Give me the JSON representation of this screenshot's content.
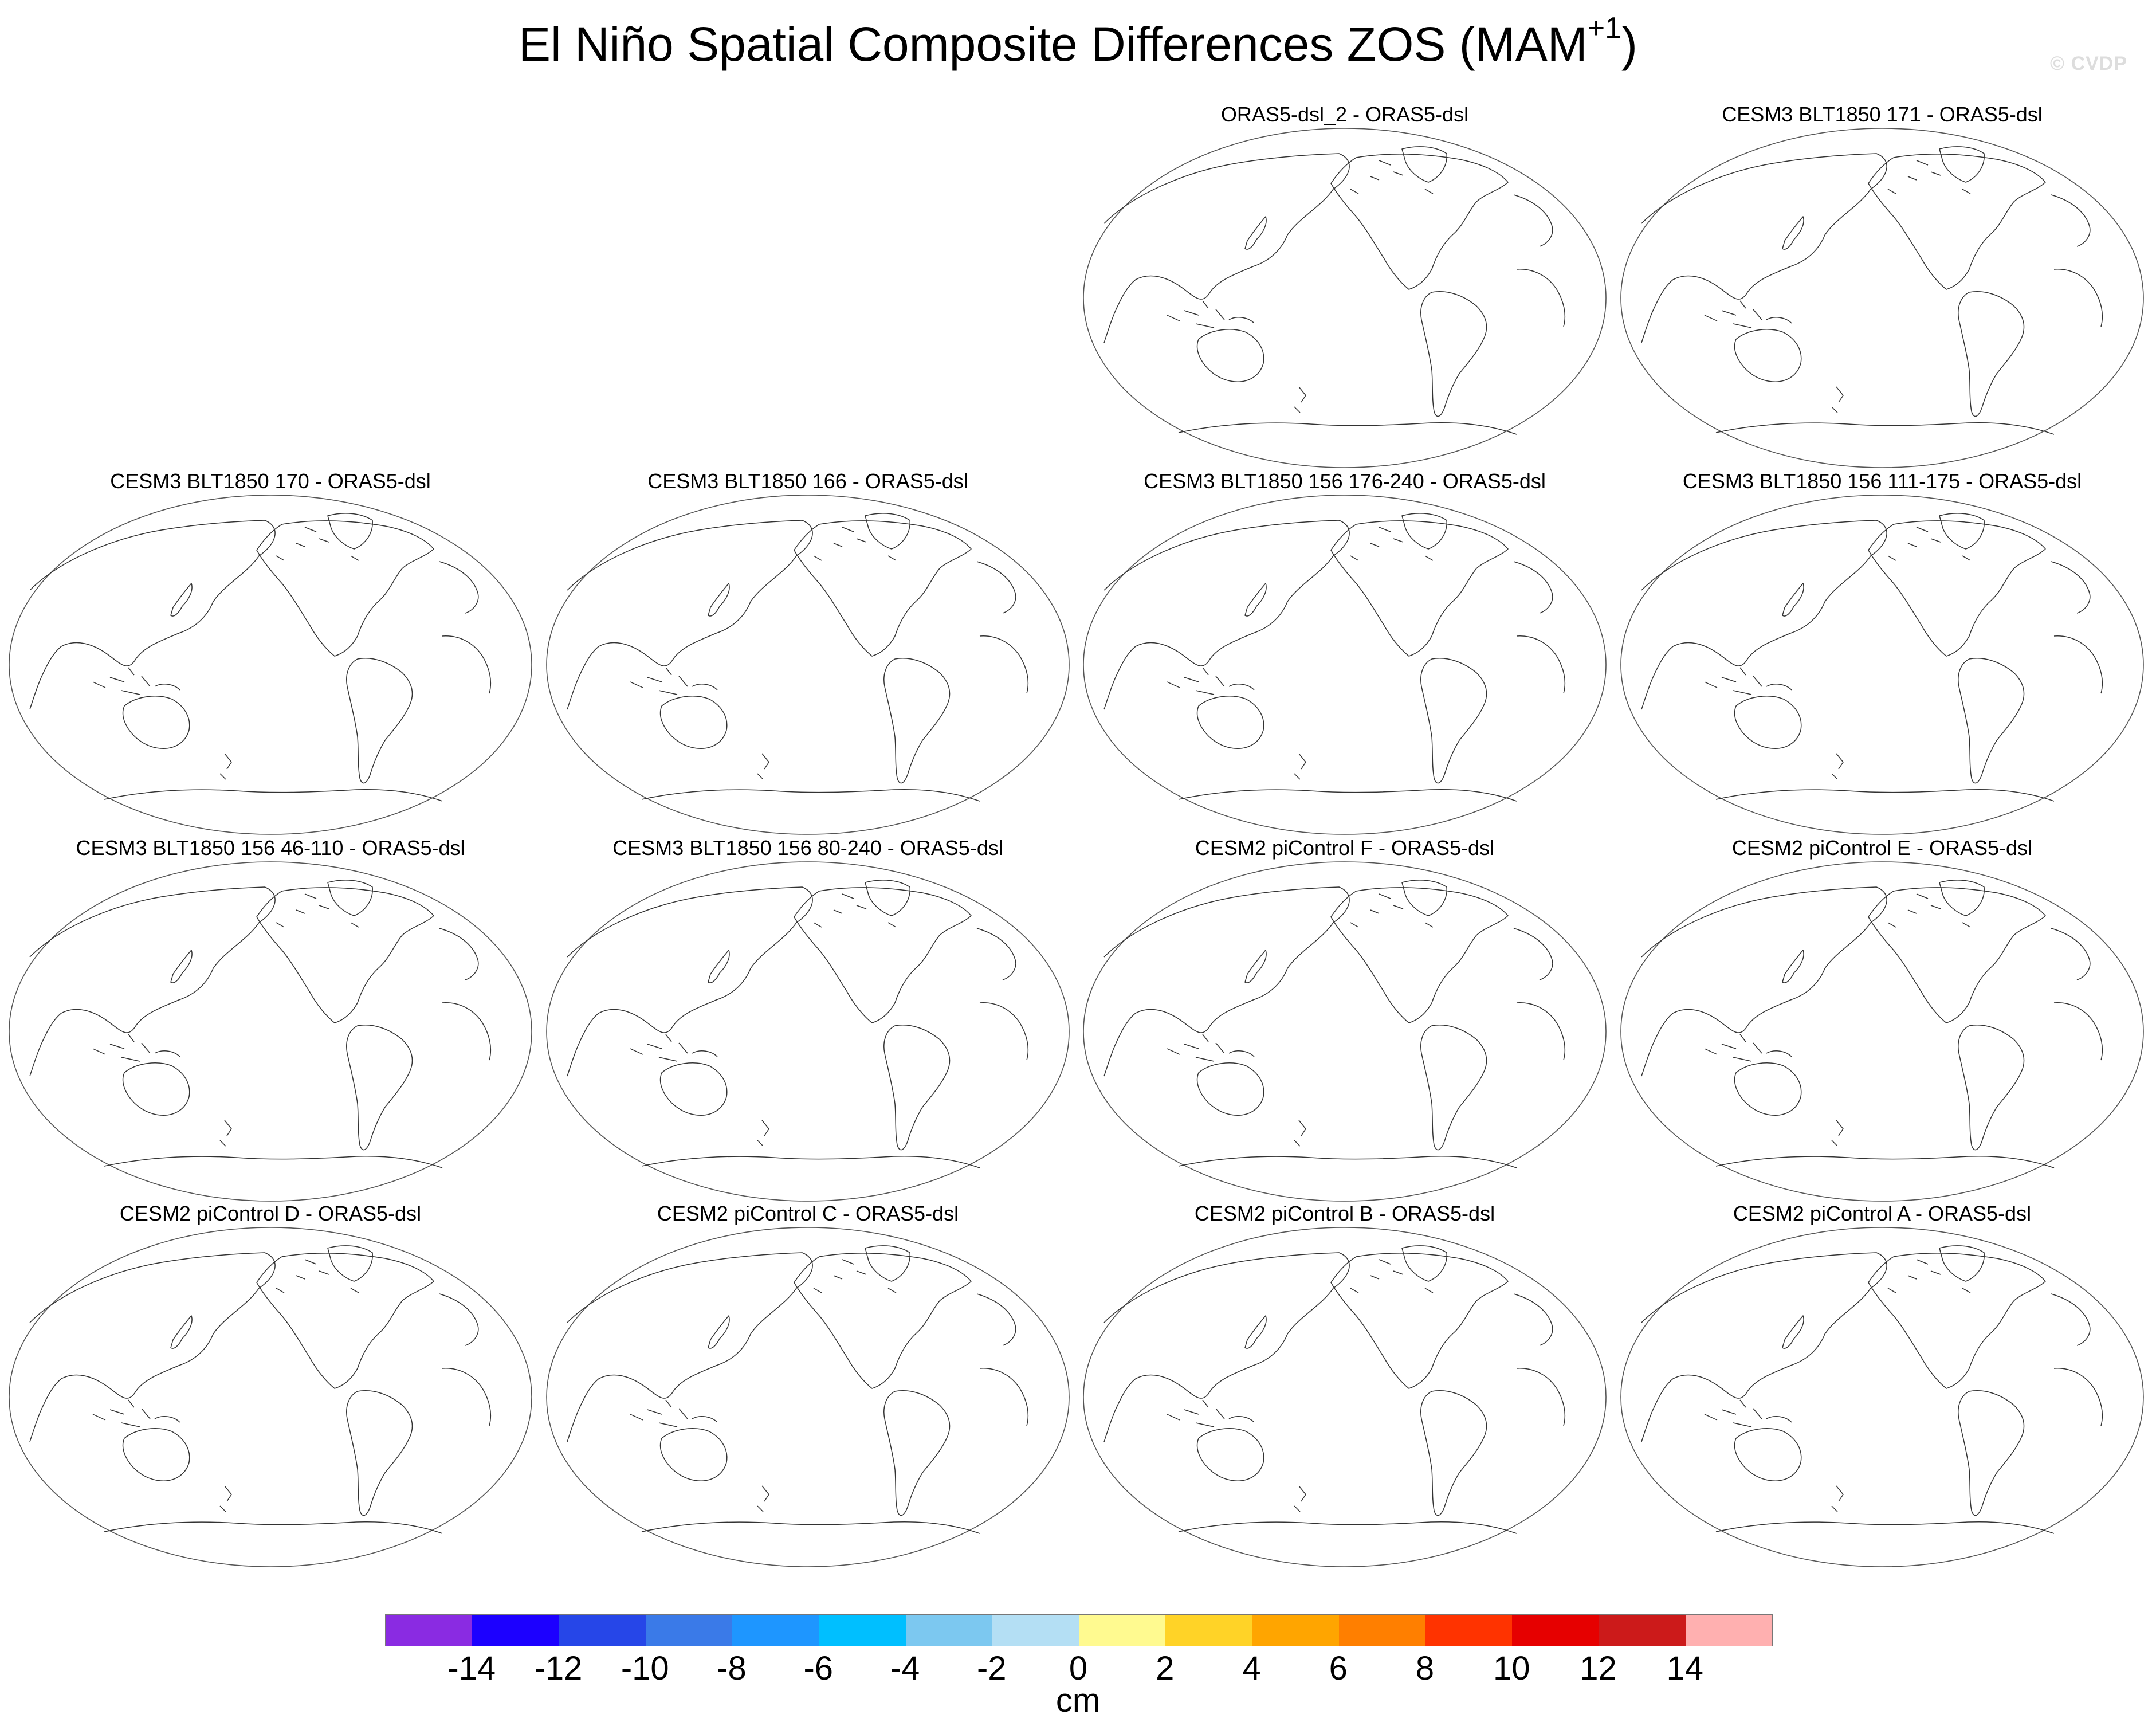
{
  "title": {
    "text": "El Niño Spatial Composite Differences ZOS (MAM",
    "superscript": "+1",
    "suffix": ")"
  },
  "copyright": "© CVDP",
  "panels": [
    {
      "title": "ORAS5-dsl_2 - ORAS5-dsl"
    },
    {
      "title": "CESM3 BLT1850 171 - ORAS5-dsl"
    },
    {
      "title": "CESM3 BLT1850 170 - ORAS5-dsl"
    },
    {
      "title": "CESM3 BLT1850 166 - ORAS5-dsl"
    },
    {
      "title": "CESM3 BLT1850 156 176-240 - ORAS5-dsl"
    },
    {
      "title": "CESM3 BLT1850 156 111-175 - ORAS5-dsl"
    },
    {
      "title": "CESM3 BLT1850 156 46-110 - ORAS5-dsl"
    },
    {
      "title": "CESM3 BLT1850 156 80-240 - ORAS5-dsl"
    },
    {
      "title": "CESM2 piControl F - ORAS5-dsl"
    },
    {
      "title": "CESM2 piControl E - ORAS5-dsl"
    },
    {
      "title": "CESM2 piControl D - ORAS5-dsl"
    },
    {
      "title": "CESM2 piControl C - ORAS5-dsl"
    },
    {
      "title": "CESM2 piControl B - ORAS5-dsl"
    },
    {
      "title": "CESM2 piControl A - ORAS5-dsl"
    }
  ],
  "colorbar": {
    "colors": [
      "#8a2be2",
      "#1c00ff",
      "#2646e8",
      "#3a7ae8",
      "#1e96ff",
      "#00bfff",
      "#7cc8f0",
      "#b4dff4",
      "#fffa90",
      "#ffd327",
      "#ffa500",
      "#ff7f00",
      "#ff3300",
      "#e60000",
      "#cc1a1a",
      "#ffb0b0"
    ],
    "ticks": [
      "-14",
      "-12",
      "-10",
      "-8",
      "-6",
      "-4",
      "-2",
      "0",
      "2",
      "4",
      "6",
      "8",
      "10",
      "12",
      "14"
    ],
    "unit": "cm"
  }
}
